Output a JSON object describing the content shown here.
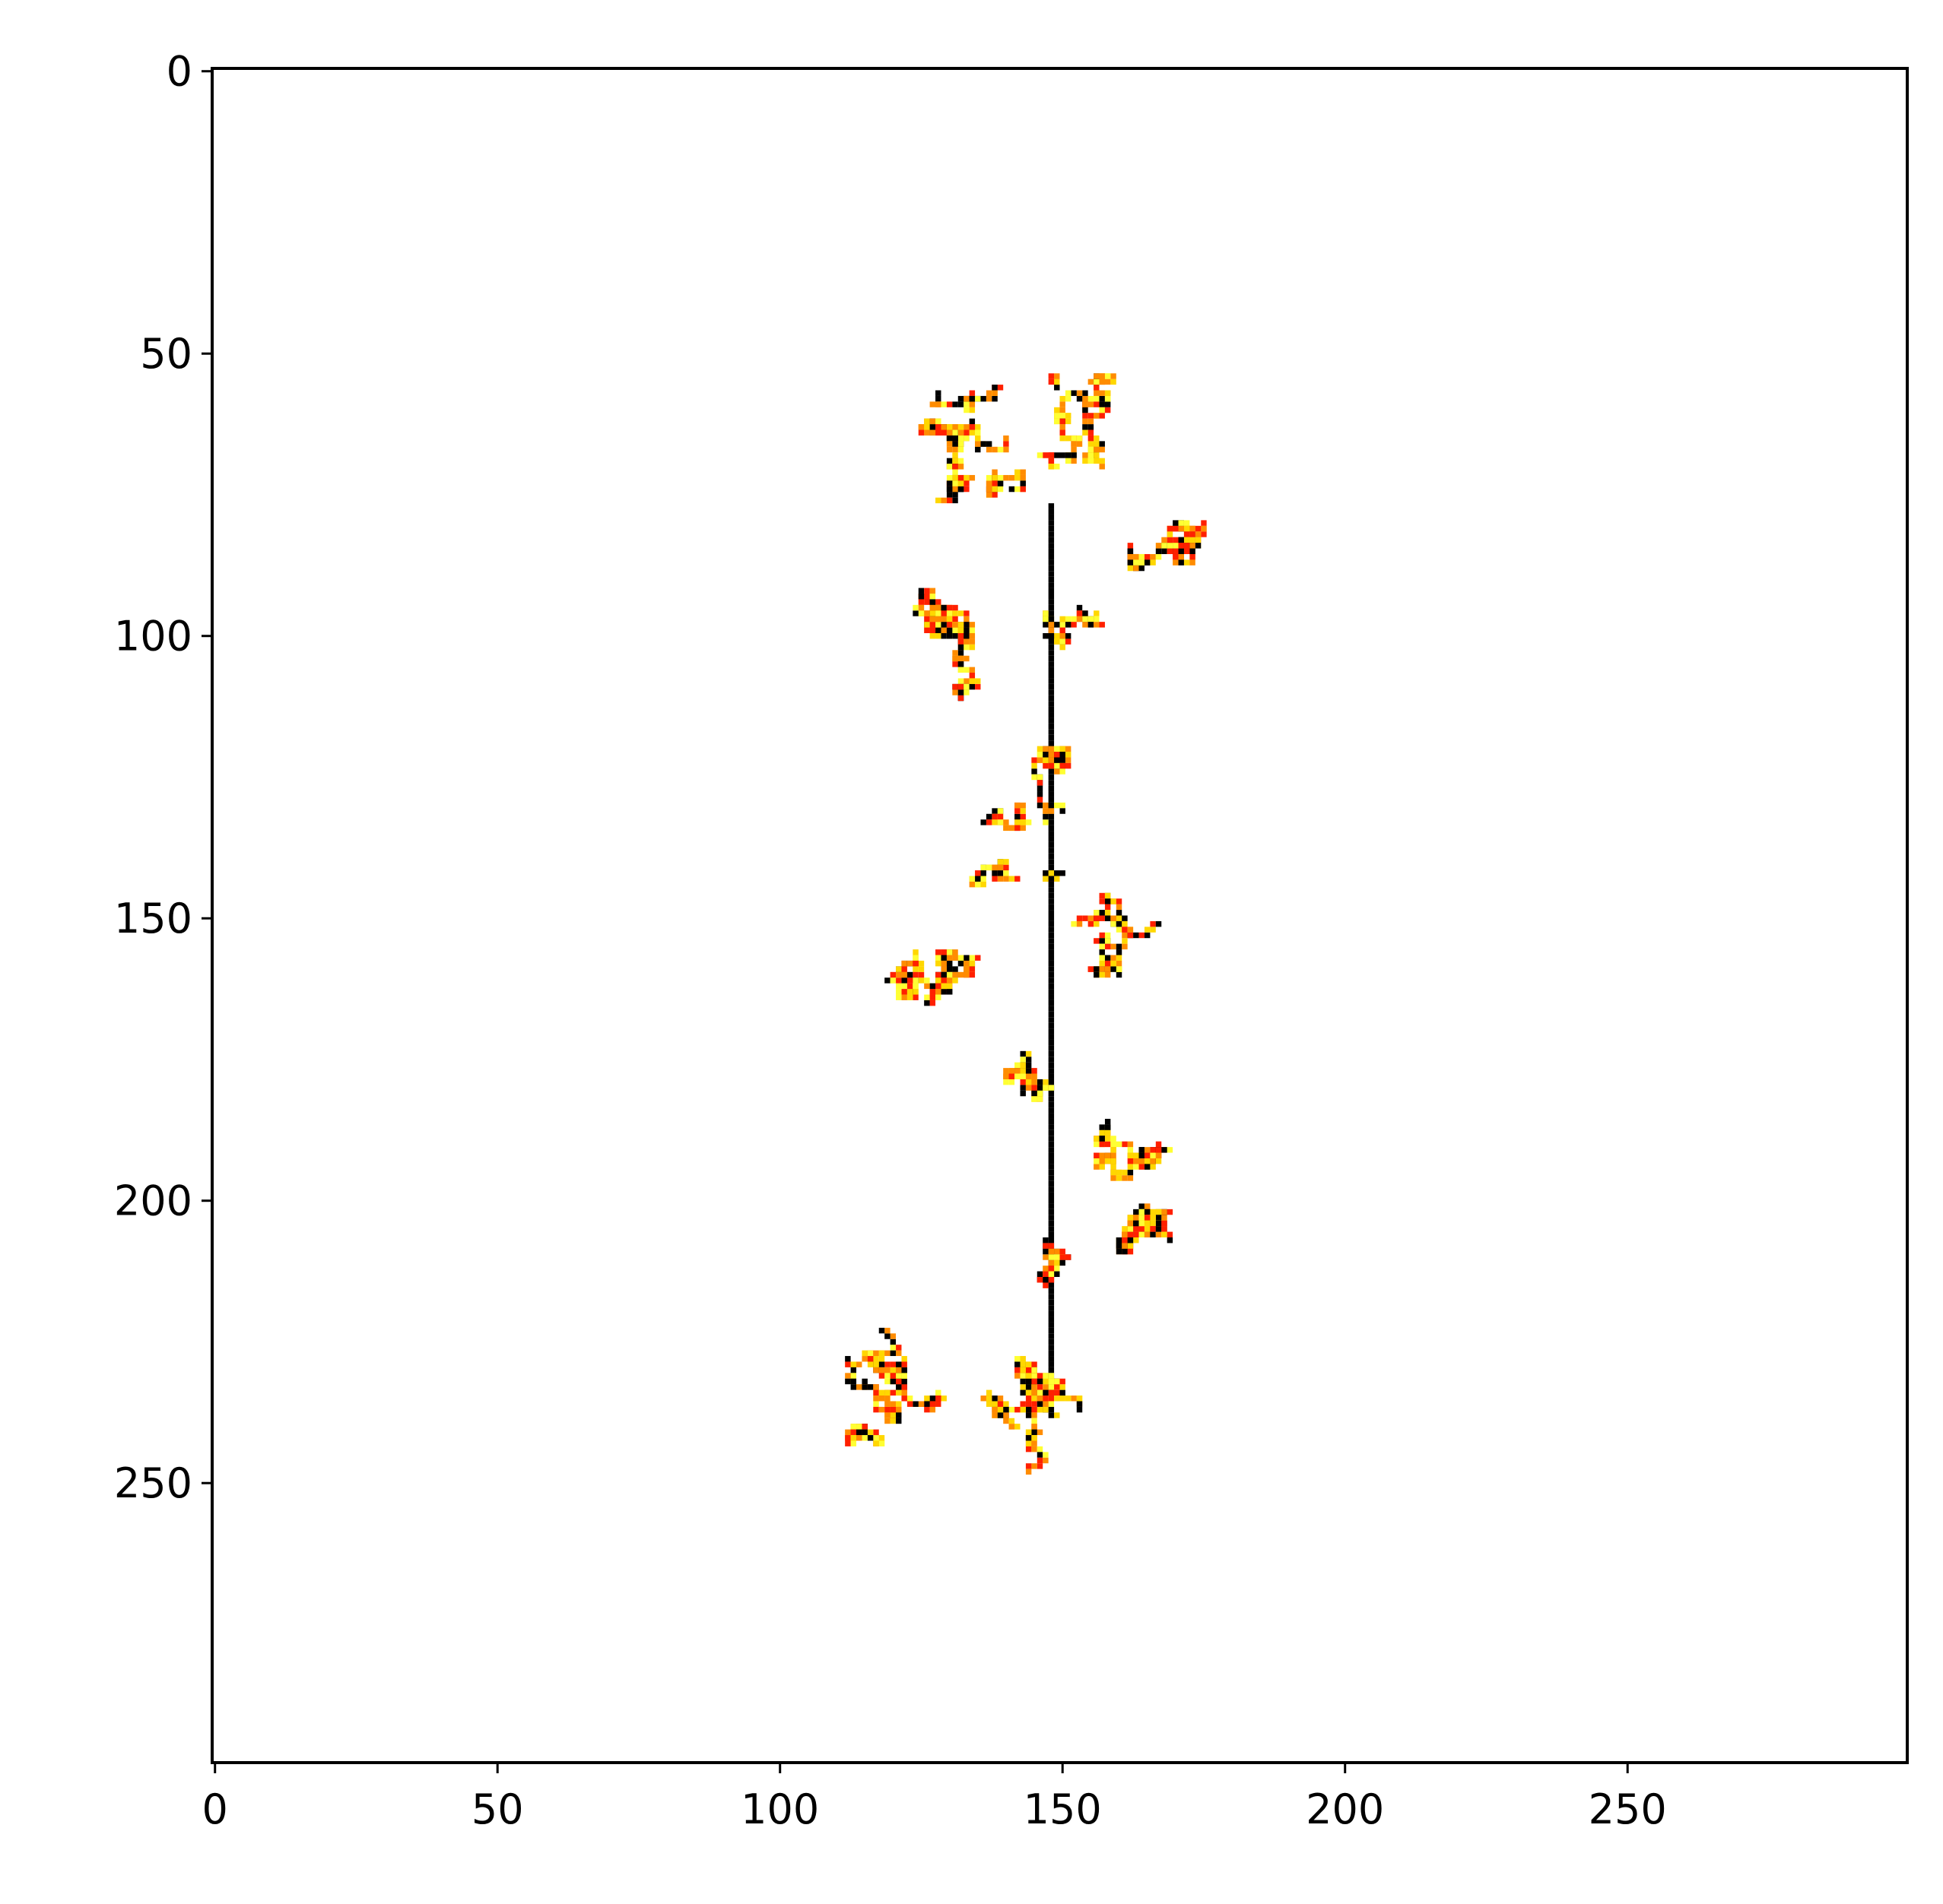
{
  "chart_data": {
    "type": "heatmap",
    "title": "",
    "xlabel": "",
    "ylabel": "",
    "xlim": [
      0,
      300
    ],
    "ylim": [
      300,
      0
    ],
    "x_ticks": [
      0,
      50,
      100,
      150,
      200,
      250
    ],
    "y_ticks": [
      0,
      50,
      100,
      150,
      200,
      250
    ],
    "x_tick_labels": [
      "0",
      "50",
      "100",
      "150",
      "200",
      "250"
    ],
    "y_tick_labels": [
      "0",
      "50",
      "100",
      "150",
      "200",
      "250"
    ],
    "grid": false,
    "colormap": [
      "#000000",
      "#ff2000",
      "#ff8c00",
      "#ffd700",
      "#ffff33"
    ],
    "background_color": "#ffffff",
    "trunk": {
      "x": 148,
      "y_start": 77,
      "y_end": 233
    },
    "clusters": [
      {
        "cx": 140,
        "cy": 66,
        "rx": 15,
        "ry": 10,
        "n": 260
      },
      {
        "cx": 156,
        "cy": 62,
        "rx": 11,
        "ry": 8,
        "n": 150
      },
      {
        "cx": 163,
        "cy": 86,
        "rx": 14,
        "ry": 6,
        "n": 150
      },
      {
        "cx": 128,
        "cy": 100,
        "rx": 17,
        "ry": 11,
        "n": 210
      },
      {
        "cx": 153,
        "cy": 98,
        "rx": 6,
        "ry": 7,
        "n": 60
      },
      {
        "cx": 148,
        "cy": 122,
        "rx": 8,
        "ry": 9,
        "n": 80
      },
      {
        "cx": 143,
        "cy": 133,
        "rx": 7,
        "ry": 3,
        "n": 40
      },
      {
        "cx": 142,
        "cy": 144,
        "rx": 8,
        "ry": 4,
        "n": 50
      },
      {
        "cx": 129,
        "cy": 157,
        "rx": 15,
        "ry": 8,
        "n": 170
      },
      {
        "cx": 158,
        "cy": 155,
        "rx": 9,
        "ry": 9,
        "n": 110
      },
      {
        "cx": 143,
        "cy": 180,
        "rx": 9,
        "ry": 7,
        "n": 80
      },
      {
        "cx": 164,
        "cy": 192,
        "rx": 10,
        "ry": 7,
        "n": 120
      },
      {
        "cx": 166,
        "cy": 204,
        "rx": 12,
        "ry": 7,
        "n": 140
      },
      {
        "cx": 148,
        "cy": 212,
        "rx": 6,
        "ry": 6,
        "n": 50
      },
      {
        "cx": 128,
        "cy": 233,
        "rx": 16,
        "ry": 10,
        "n": 230
      },
      {
        "cx": 150,
        "cy": 238,
        "rx": 14,
        "ry": 10,
        "n": 210
      }
    ]
  }
}
